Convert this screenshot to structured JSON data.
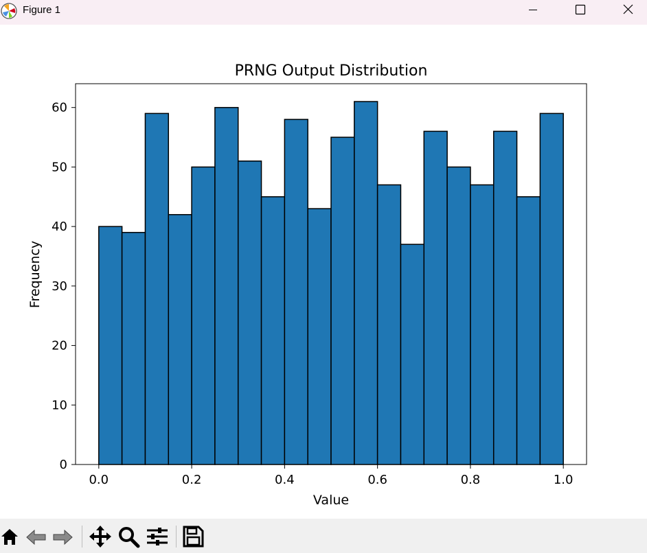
{
  "window": {
    "title": "Figure 1",
    "controls": [
      "minimize",
      "maximize",
      "close"
    ]
  },
  "toolbar": {
    "buttons": [
      {
        "name": "home-icon"
      },
      {
        "name": "back-arrow-icon"
      },
      {
        "name": "forward-arrow-icon"
      },
      {
        "name": "pan-move-icon"
      },
      {
        "name": "zoom-magnifier-icon"
      },
      {
        "name": "configure-subplots-icon"
      },
      {
        "name": "save-floppy-icon"
      }
    ]
  },
  "chart_data": {
    "type": "bar",
    "title": "PRNG Output Distribution",
    "xlabel": "Value",
    "ylabel": "Frequency",
    "bin_edges": [
      0.0,
      0.05,
      0.1,
      0.15,
      0.2,
      0.25,
      0.3,
      0.35,
      0.4,
      0.45,
      0.5,
      0.55,
      0.6,
      0.65,
      0.7,
      0.75,
      0.8,
      0.85,
      0.9,
      0.95,
      1.0
    ],
    "values": [
      40,
      39,
      59,
      42,
      50,
      60,
      51,
      45,
      58,
      43,
      55,
      61,
      47,
      37,
      56,
      50,
      47,
      56,
      45,
      59
    ],
    "xticks": [
      "0.0",
      "0.2",
      "0.4",
      "0.6",
      "0.8",
      "1.0"
    ],
    "yticks": [
      "0",
      "10",
      "20",
      "30",
      "40",
      "50",
      "60"
    ],
    "xlim": [
      -0.05,
      1.05
    ],
    "ylim": [
      0,
      64
    ],
    "bar_color": "#1f77b4",
    "edge_color": "#000000",
    "grid": false
  }
}
